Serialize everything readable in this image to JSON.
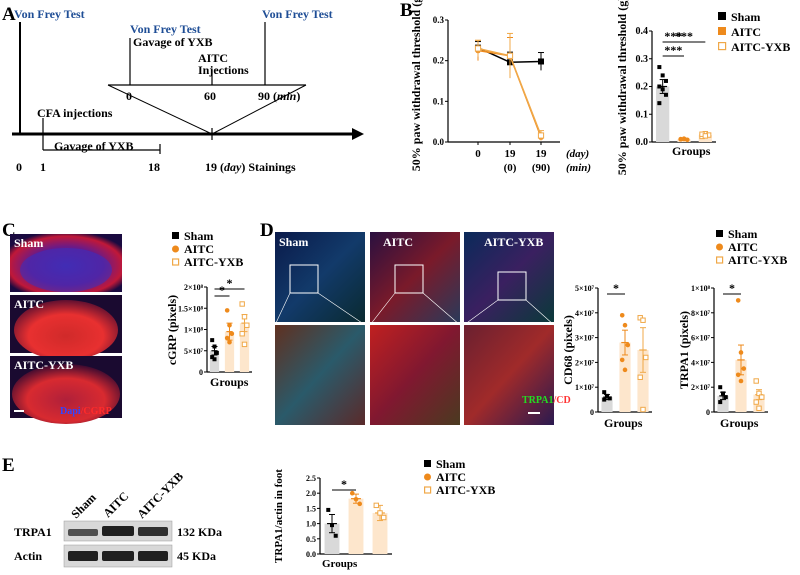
{
  "panels": {
    "A": "A",
    "B": "B",
    "C": "C",
    "D": "D",
    "E": "E"
  },
  "panel_a": {
    "von_frey_1": "Von Frey Test",
    "von_frey_2": "Von Frey Test",
    "von_frey_3": "Von Frey Test",
    "gavage_top": "Gavage of YXB",
    "aitc_1": "AITC",
    "aitc_2": "Injections",
    "tick_0": "0",
    "tick_60": "60",
    "tick_90": "90 (",
    "min_unit": "min",
    "close_paren": ")",
    "cfa": "CFA injections",
    "gavage_bottom": "Gavage of YXB",
    "day0": "0",
    "day1": "1",
    "day18": "18",
    "day19": "19 (",
    "day_unit": "day",
    "stainings": ") Stainings"
  },
  "panel_c": {
    "labels": [
      "Sham",
      "AITC",
      "AITC-YXB"
    ],
    "scale_colors": {
      "dapi": "#3344ff",
      "cgrp": "#ff2a2a"
    },
    "stain_dapi": "Dapi",
    "stain_cgrp": "/CGRP"
  },
  "panel_d": {
    "labels": [
      "Sham",
      "AITC",
      "AITC-YXB"
    ],
    "stain_trpa1": "TRPA1",
    "stain_cd": "/CD"
  },
  "panel_e": {
    "lanes": [
      "Sham",
      "AITC",
      "AITC-YXB"
    ],
    "rows": [
      {
        "name": "TRPA1",
        "size": "132 KDa"
      },
      {
        "name": "Actin",
        "size": "45 KDa"
      }
    ]
  },
  "legend": {
    "entries": [
      "Sham",
      "AITC",
      "AITC-YXB"
    ],
    "colors": {
      "sham": "#000000",
      "aitc": "#ee8a1c",
      "aitc_yxb": "#f0a848"
    }
  },
  "chart_data": [
    {
      "id": "B-line",
      "type": "line",
      "ylabel": "50% paw withdrawal threshold (g)",
      "ylim": [
        0,
        0.3
      ],
      "yticks": [
        "0.0",
        "0.1",
        "0.2",
        "0.3"
      ],
      "categories": [
        "0",
        "19 (0)",
        "19 (90)"
      ],
      "tick_labels_top": [
        "0",
        "19",
        "19"
      ],
      "tick_labels_bottom": [
        "",
        "(0)",
        "(90)"
      ],
      "xlabel_top": "(day)",
      "xlabel_bottom": "(min)",
      "series": [
        {
          "name": "Sham",
          "values": [
            0.232,
            0.196,
            0.198
          ],
          "errors": [
            0.015,
            0.025,
            0.022
          ]
        },
        {
          "name": "AITC",
          "values": [
            0.225,
            0.212,
            0.012
          ],
          "errors": [
            0.025,
            0.045,
            0.008
          ]
        },
        {
          "name": "AITC-YXB",
          "values": [
            0.23,
            0.212,
            0.016
          ],
          "errors": [
            0.02,
            0.055,
            0.012
          ]
        }
      ]
    },
    {
      "id": "B-bar",
      "type": "bar",
      "ylabel": "50% paw withdrawal threshold (g)",
      "xlabel": "Groups",
      "ylim": [
        0,
        0.4
      ],
      "yticks": [
        "0.0",
        "0.1",
        "0.2",
        "0.3",
        "0.4"
      ],
      "categories": [
        "Sham",
        "AITC",
        "AITC-YXB"
      ],
      "values": [
        0.2,
        0.01,
        0.025
      ],
      "errors": [
        0.025,
        0.004,
        0.006
      ],
      "points": [
        [
          0.27,
          0.24,
          0.22,
          0.2,
          0.19,
          0.17,
          0.14
        ],
        [
          0.01,
          0.012,
          0.008,
          0.01,
          0.011
        ],
        [
          0.02,
          0.03,
          0.025,
          0.028,
          0.022
        ]
      ],
      "annotations": [
        "***",
        "***",
        "***"
      ]
    },
    {
      "id": "C-bar",
      "type": "bar",
      "ylabel": "cGRP (pixels)",
      "xlabel": "Groups",
      "ylim": [
        0,
        200000000
      ],
      "yticks": [
        "0",
        "5×10⁷",
        "1×10⁸",
        "1.5×10⁸",
        "2×10⁸"
      ],
      "categories": [
        "Sham",
        "AITC",
        "AITC-YXB"
      ],
      "values": [
        50000000,
        95000000,
        115000000
      ],
      "errors": [
        10000000,
        20000000,
        20000000
      ],
      "points": [
        [
          75000000,
          60000000,
          45000000,
          35000000,
          30000000
        ],
        [
          145000000,
          110000000,
          90000000,
          80000000,
          70000000
        ],
        [
          160000000,
          130000000,
          110000000,
          90000000,
          65000000
        ]
      ],
      "annotations": [
        "*",
        "*"
      ]
    },
    {
      "id": "D-bar-CD68",
      "type": "bar",
      "ylabel": "CD68 (pixels)",
      "xlabel": "Groups",
      "ylim": [
        0,
        50000000
      ],
      "yticks": [
        "0",
        "1×10⁷",
        "2×10⁷",
        "3×10⁷",
        "4×10⁷",
        "5×10⁷"
      ],
      "categories": [
        "Sham",
        "AITC",
        "AITC-YXB"
      ],
      "values": [
        6000000,
        28000000,
        25000000
      ],
      "errors": [
        1000000,
        5000000,
        9000000
      ],
      "points": [
        [
          8000000,
          6500000,
          5500000,
          5000000
        ],
        [
          39000000,
          35000000,
          27000000,
          21000000,
          17000000
        ],
        [
          38000000,
          37000000,
          22000000,
          14000000,
          1000000
        ]
      ],
      "annotations": [
        "*"
      ]
    },
    {
      "id": "D-bar-TRPA1",
      "type": "bar",
      "ylabel": "TRPA1 (pixels)",
      "xlabel": "Groups",
      "ylim": [
        0,
        100000000
      ],
      "yticks": [
        "0",
        "2×10⁷",
        "4×10⁷",
        "6×10⁷",
        "8×10⁷",
        "1×10⁸"
      ],
      "categories": [
        "Sham",
        "AITC",
        "AITC-YXB"
      ],
      "values": [
        13000000,
        42000000,
        14000000
      ],
      "errors": [
        3000000,
        12000000,
        4000000
      ],
      "points": [
        [
          20000000,
          15000000,
          12000000,
          8000000
        ],
        [
          90000000,
          48000000,
          35000000,
          30000000,
          25000000
        ],
        [
          25000000,
          15000000,
          12000000,
          8000000,
          3000000
        ]
      ],
      "annotations": [
        "*"
      ]
    },
    {
      "id": "E-bar",
      "type": "bar",
      "ylabel": "TRPA1/actin in foot",
      "xlabel": "Groups",
      "ylim": [
        0,
        2.5
      ],
      "yticks": [
        "0.0",
        "0.5",
        "1.0",
        "1.5",
        "2.0",
        "2.5"
      ],
      "categories": [
        "Sham",
        "AITC",
        "AITC-YXB"
      ],
      "values": [
        1.0,
        1.82,
        1.35
      ],
      "errors": [
        0.3,
        0.15,
        0.25
      ],
      "points": [
        [
          1.45,
          0.95,
          0.6
        ],
        [
          2.0,
          1.8,
          1.65
        ],
        [
          1.6,
          1.35,
          1.2
        ]
      ],
      "annotations": [
        "*"
      ]
    }
  ]
}
